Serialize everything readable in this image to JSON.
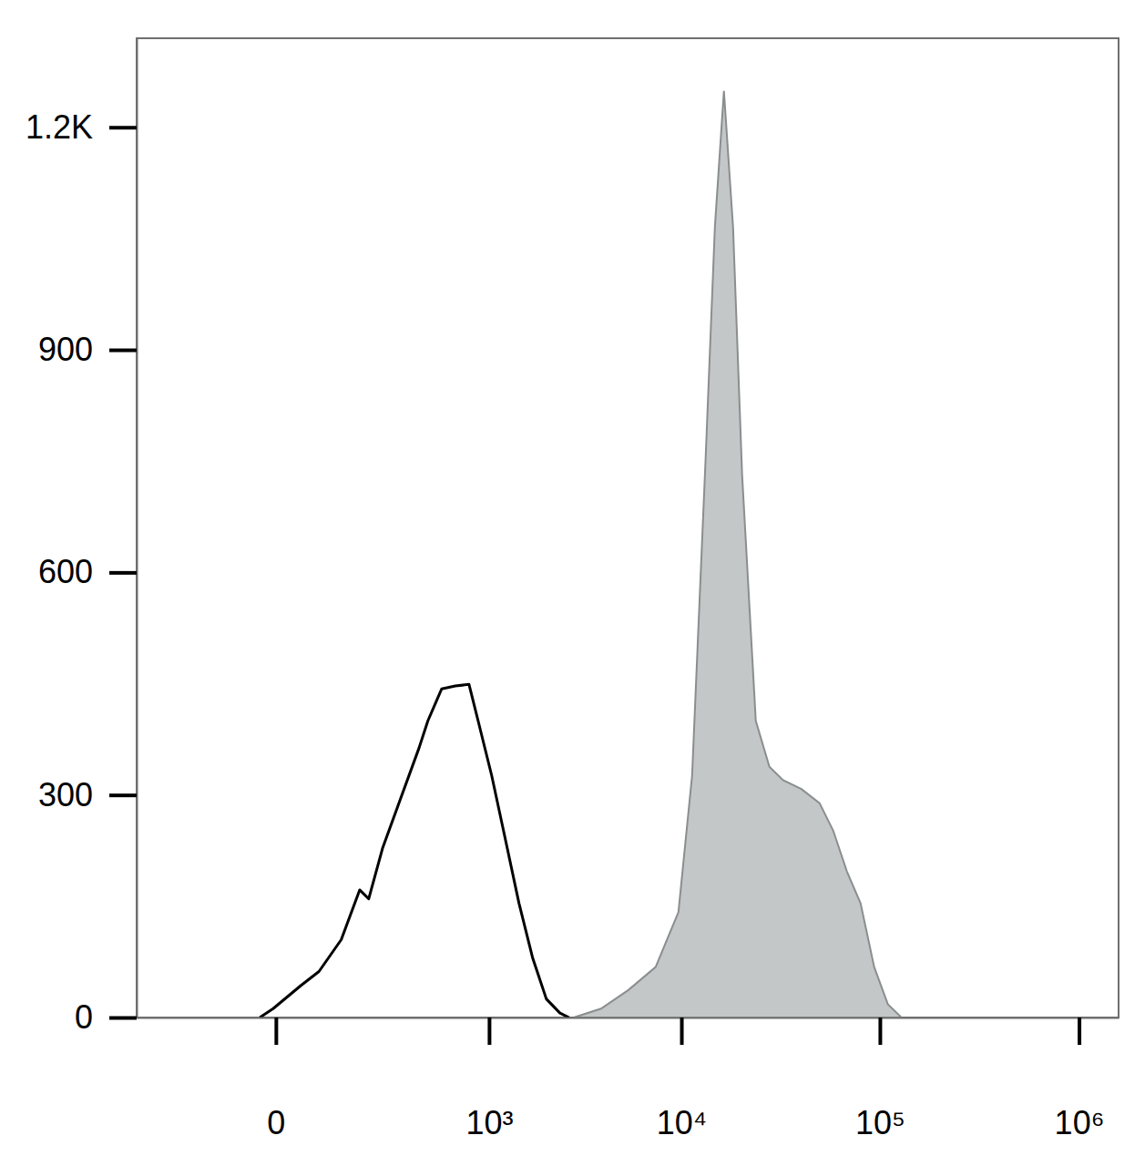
{
  "chart_data": {
    "type": "line",
    "log": "x",
    "xlim": [
      -372,
      1580000
    ],
    "ylim": [
      0,
      1320
    ],
    "xticks": [
      0,
      {
        "value": 1000,
        "label": "10³"
      },
      {
        "value": 10000,
        "label": "10⁴"
      },
      {
        "value": 100000,
        "label": "10⁵"
      },
      {
        "value": 1000000,
        "label": "10⁶"
      }
    ],
    "yticks": [
      0,
      300,
      600,
      900,
      {
        "value": 1200,
        "label": "1.2K"
      }
    ],
    "series": [
      {
        "type": "area",
        "color": "#c3c7c7",
        "x": [
          2813,
          3894,
          5375,
          7400,
          9660,
          11330,
          13280,
          14770,
          16410,
          18250,
          20270,
          23760,
          27830,
          32610,
          40300,
          49750,
          58270,
          68270,
          79980,
          93650,
          109700,
          128500
        ],
        "values": [
          0,
          12,
          37,
          68,
          142,
          326,
          757,
          1065,
          1249,
          1065,
          732,
          400,
          338,
          320,
          308,
          289,
          252,
          197,
          154,
          68,
          18,
          0
        ]
      },
      {
        "type": "line",
        "color": "#000000",
        "x": [
          -19,
          -3,
          31,
          60,
          105,
          152,
          179,
          226,
          300,
          393,
          446,
          539,
          647,
          774,
          870,
          1034,
          1227,
          1452,
          1717,
          2026,
          2388,
          2663
        ],
        "values": [
          0,
          12,
          43,
          62,
          105,
          172,
          160,
          228,
          295,
          363,
          400,
          443,
          447,
          449,
          400,
          326,
          240,
          154,
          80,
          25,
          6,
          0
        ]
      }
    ]
  }
}
